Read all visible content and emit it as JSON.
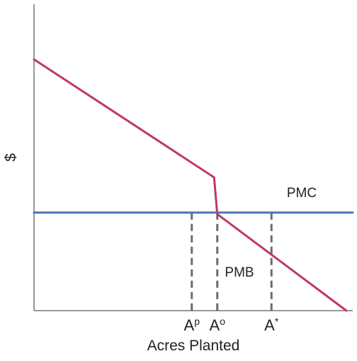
{
  "chart_data": {
    "type": "line",
    "xlabel": "Acres Planted",
    "ylabel": "$",
    "series": [
      {
        "name": "PMB",
        "color": "#c0395f",
        "x": [
          0,
          56.5,
          57.5,
          98
        ],
        "y": [
          82,
          43.5,
          31.5,
          0
        ]
      },
      {
        "name": "PMC",
        "color": "#4f73b5",
        "x": [
          0,
          100
        ],
        "y": [
          32,
          32
        ]
      }
    ],
    "reference_lines": [
      {
        "label_base": "A",
        "label_sup": "p",
        "x": 49.5
      },
      {
        "label_base": "A",
        "label_sup": "o",
        "x": 57.5
      },
      {
        "label_base": "A",
        "label_sup": "*",
        "x": 74.5
      }
    ],
    "reference_line_color": "#6b6b6b",
    "xlim": [
      0,
      100
    ],
    "ylim": [
      0,
      100
    ],
    "grid": false,
    "legend": "none"
  }
}
